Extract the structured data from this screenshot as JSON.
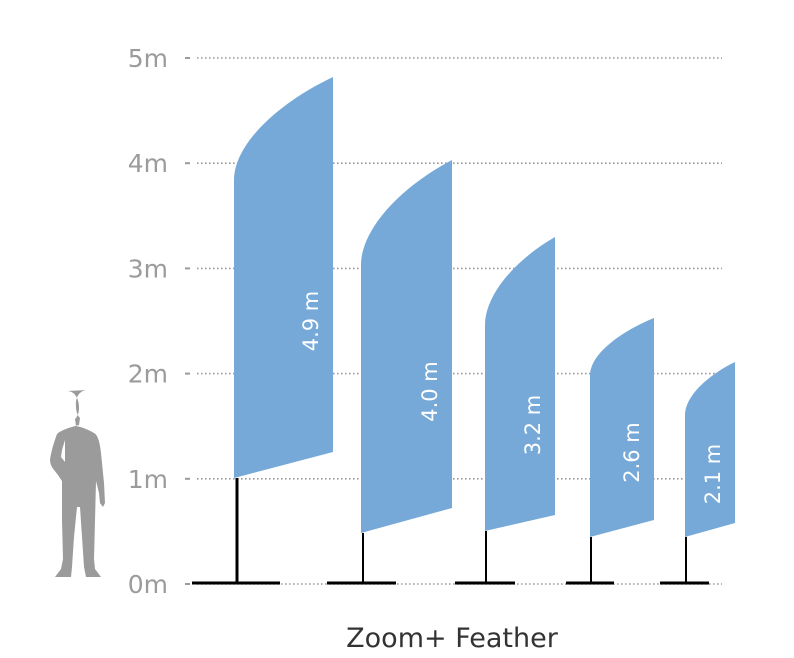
{
  "title": "Zoom+ Feather",
  "axis": {
    "unit": "m",
    "ticks": [
      "0m",
      "1m",
      "2m",
      "3m",
      "4m",
      "5m"
    ],
    "range": [
      0,
      5
    ],
    "grid": "dotted"
  },
  "colors": {
    "flag": "#76a9d8",
    "grid": "#9b9b9b",
    "pole": "#000000",
    "person": "#9b9b9b"
  },
  "person_icon": "human-silhouette",
  "flags": [
    {
      "label": "4.9 m",
      "height_m": 4.9
    },
    {
      "label": "4.0 m",
      "height_m": 4.0
    },
    {
      "label": "3.2 m",
      "height_m": 3.2
    },
    {
      "label": "2.6 m",
      "height_m": 2.6
    },
    {
      "label": "2.1 m",
      "height_m": 2.1
    }
  ]
}
